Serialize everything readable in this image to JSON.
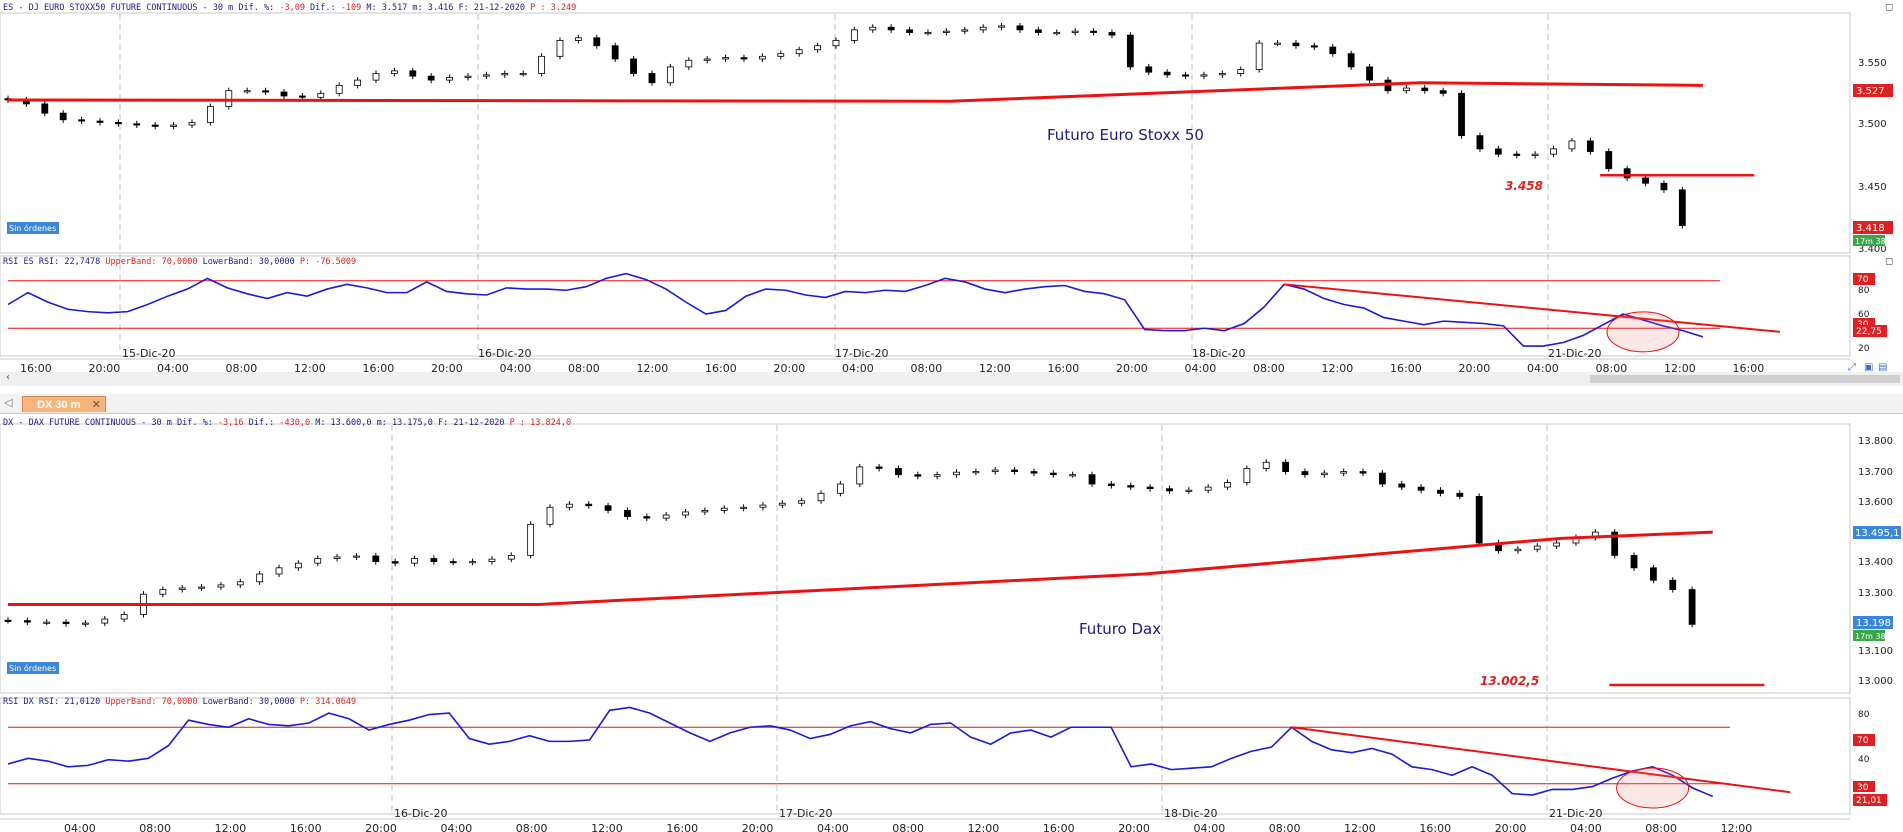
{
  "tab": {
    "label": "DX 30 m",
    "close": "✕",
    "arrow": "◁"
  },
  "colors": {
    "candle_up": "#ffffff",
    "candle_down": "#000000",
    "ma": "#ee1111",
    "rsi": "#1a1ad8",
    "band": "#ee1111",
    "axis_badge_red": "#e02020",
    "axis_badge_blue": "#3a86d8",
    "axis_badge_green": "#3aa64a",
    "order_badge": "#3a86d8"
  },
  "panel1": {
    "header": {
      "prefix": "ES - DJ EURO STOXX50 FUTURE CONTINUOUS -  30 m Dif. %: ",
      "pct": "-3,09",
      "mid": " Dif.: ",
      "diff": "-109",
      "rest": " M: 3.517 m: 3.416 F: 21-12-2020 ",
      "plabel": "P : 3.249"
    },
    "label": "Futuro Euro Stoxx 50",
    "level_label": "3.458",
    "orders_badge": "Sin órdenes",
    "yticks": [
      "3.550",
      "3.500",
      "3.450",
      "3.400"
    ],
    "badge_price": "3.527",
    "badge_last": "3.418",
    "badge_timer": "17m 38s"
  },
  "rsi1": {
    "header": {
      "label": "RSI ES RSI: 22,7478 ",
      "ub": "UpperBand: 70,0000",
      "lb": " LowerBand: 30,0000 ",
      "p": "P: -76.5009"
    },
    "yticks": [
      "80",
      "60",
      "40",
      "20"
    ],
    "badge_upper": "70",
    "badge_lower": "30",
    "badge_value": "22,75",
    "date_labels": [
      "15-Dic-20",
      "16-Dic-20",
      "17-Dic-20",
      "18-Dic-20",
      "21-Dic-20"
    ],
    "time_labels": [
      "16:00",
      "20:00",
      "04:00",
      "08:00",
      "12:00",
      "16:00",
      "20:00",
      "04:00",
      "08:00",
      "12:00",
      "16:00",
      "20:00",
      "04:00",
      "08:00",
      "12:00",
      "16:00",
      "20:00",
      "04:00",
      "08:00",
      "12:00",
      "16:00",
      "20:00",
      "04:00",
      "08:00",
      "12:00",
      "16:00"
    ]
  },
  "panel2": {
    "header": {
      "prefix": "DX - DAX FUTURE CONTINUOUS -  30 m Dif. %: ",
      "pct": "-3,16",
      "mid": " Dif.: ",
      "diff": "-430,0",
      "rest": " M: 13.600,0 m: 13.175,0 F: 21-12-2020 ",
      "plabel": "P : 13.824,0"
    },
    "label": "Futuro Dax",
    "level_label": "13.002,5",
    "orders_badge": "Sin órdenes",
    "yticks": [
      "13.800",
      "13.700",
      "13.600",
      "13.500",
      "13.400",
      "13.300",
      "13.200",
      "13.100",
      "13.000"
    ],
    "badge_price": "13.495,1",
    "badge_last": "13.198",
    "badge_timer": "17m 38s"
  },
  "rsi2": {
    "header": {
      "label": "RSI DX RSI: 21,0120 ",
      "ub": "UpperBand: 70,0000",
      "lb": " LowerBand: 30,0000 ",
      "p": "P: 314.0649"
    },
    "yticks": [
      "80",
      "60",
      "40",
      "20"
    ],
    "badge_upper": "70",
    "badge_lower": "30",
    "badge_value": "21,01",
    "date_labels": [
      "16-Dic-20",
      "17-Dic-20",
      "18-Dic-20",
      "21-Dic-20"
    ],
    "time_labels": [
      "04:00",
      "08:00",
      "12:00",
      "16:00",
      "20:00",
      "04:00",
      "08:00",
      "12:00",
      "16:00",
      "20:00",
      "04:00",
      "08:00",
      "12:00",
      "16:00",
      "20:00",
      "04:00",
      "08:00",
      "12:00",
      "16:00",
      "20:00",
      "04:00",
      "08:00",
      "12:00"
    ]
  },
  "chart_data": [
    {
      "type": "candlestick",
      "instrument": "DJ EURO STOXX50 FUTURE CONTINUOUS",
      "timeframe": "30 m",
      "title": "Futuro Euro Stoxx 50",
      "ylim": [
        3400,
        3580
      ],
      "close_path": [
        3515,
        3512,
        3505,
        3500,
        3499,
        3498,
        3497,
        3496,
        3495,
        3496,
        3498,
        3510,
        3522,
        3522,
        3521,
        3518,
        3517,
        3520,
        3526,
        3530,
        3535,
        3537,
        3533,
        3530,
        3532,
        3533,
        3534,
        3535,
        3535,
        3548,
        3560,
        3562,
        3556,
        3546,
        3535,
        3528,
        3540,
        3545,
        3546,
        3547,
        3546,
        3548,
        3550,
        3553,
        3556,
        3560,
        3568,
        3570,
        3568,
        3566,
        3566,
        3567,
        3568,
        3570,
        3571,
        3568,
        3566,
        3566,
        3567,
        3566,
        3564,
        3540,
        3536,
        3534,
        3533,
        3534,
        3535,
        3538,
        3558,
        3558,
        3556,
        3555,
        3550,
        3540,
        3530,
        3522,
        3524,
        3522,
        3520,
        3488,
        3478,
        3474,
        3473,
        3474,
        3478,
        3484,
        3476,
        3463,
        3456,
        3452,
        3447,
        3420
      ],
      "moving_average": [
        [
          0,
          3515
        ],
        [
          0.5,
          3514
        ],
        [
          0.75,
          3528
        ],
        [
          0.9,
          3526
        ]
      ],
      "levels": [
        {
          "label": "3.458",
          "value": 3458
        }
      ],
      "last": 3418,
      "marker": 3527
    },
    {
      "type": "line",
      "series": [
        {
          "name": "RSI ES",
          "values": [
            50,
            60,
            52,
            46,
            44,
            43,
            44,
            50,
            57,
            63,
            72,
            64,
            59,
            55,
            60,
            57,
            63,
            67,
            64,
            60,
            60,
            69,
            61,
            59,
            58,
            64,
            63,
            63,
            62,
            65,
            72,
            76,
            71,
            63,
            52,
            42,
            45,
            57,
            63,
            62,
            58,
            56,
            61,
            60,
            62,
            61,
            66,
            72,
            69,
            63,
            60,
            63,
            65,
            66,
            61,
            59,
            54,
            29,
            28,
            28,
            30,
            28,
            34,
            48,
            67,
            63,
            55,
            50,
            47,
            39,
            36,
            33,
            36,
            35,
            34,
            32,
            15,
            15,
            18,
            24,
            33,
            42,
            37,
            32,
            28,
            22.75
          ]
        }
      ],
      "upper_band": 70,
      "lower_band": 30,
      "ylim": [
        10,
        90
      ],
      "value": 22.7478
    },
    {
      "type": "candlestick",
      "instrument": "DAX FUTURE CONTINUOUS",
      "timeframe": "30 m",
      "title": "Futuro Dax",
      "ylim": [
        12980,
        13840
      ],
      "close_path": [
        13210,
        13205,
        13205,
        13200,
        13202,
        13215,
        13230,
        13295,
        13310,
        13315,
        13318,
        13325,
        13335,
        13360,
        13380,
        13395,
        13410,
        13415,
        13418,
        13400,
        13395,
        13410,
        13400,
        13398,
        13400,
        13408,
        13420,
        13520,
        13575,
        13585,
        13580,
        13565,
        13545,
        13540,
        13550,
        13560,
        13565,
        13572,
        13575,
        13582,
        13588,
        13596,
        13620,
        13650,
        13705,
        13700,
        13680,
        13675,
        13680,
        13688,
        13690,
        13695,
        13690,
        13685,
        13680,
        13680,
        13650,
        13645,
        13640,
        13635,
        13628,
        13630,
        13640,
        13655,
        13700,
        13720,
        13690,
        13680,
        13685,
        13690,
        13685,
        13650,
        13640,
        13630,
        13620,
        13610,
        13460,
        13435,
        13440,
        13450,
        13460,
        13478,
        13495,
        13420,
        13380,
        13340,
        13310,
        13198
      ],
      "moving_average": [
        [
          0,
          13262
        ],
        [
          0.28,
          13262
        ],
        [
          0.6,
          13360
        ],
        [
          0.82,
          13475
        ],
        [
          0.9,
          13495
        ]
      ],
      "levels": [
        {
          "label": "13.002,5",
          "value": 13002.5
        }
      ],
      "last": 13198,
      "marker": 13495.1
    },
    {
      "type": "line",
      "series": [
        {
          "name": "RSI DX",
          "values": [
            44,
            48,
            46,
            42,
            43,
            47,
            46,
            48,
            57,
            75,
            72,
            70,
            76,
            72,
            71,
            73,
            80,
            76,
            68,
            72,
            75,
            79,
            80,
            62,
            58,
            60,
            64,
            60,
            60,
            61,
            82,
            84,
            80,
            73,
            66,
            60,
            66,
            70,
            71,
            68,
            62,
            65,
            71,
            74,
            69,
            66,
            72,
            73,
            63,
            58,
            66,
            68,
            63,
            70,
            70,
            70,
            42,
            44,
            40,
            41,
            42,
            48,
            53,
            56,
            70,
            60,
            54,
            52,
            55,
            51,
            42,
            40,
            36,
            42,
            36,
            23,
            22,
            26,
            26,
            28,
            34,
            39,
            42,
            36,
            27,
            21.01
          ]
        }
      ],
      "upper_band": 70,
      "lower_band": 30,
      "ylim": [
        10,
        90
      ],
      "value": 21.012
    }
  ]
}
